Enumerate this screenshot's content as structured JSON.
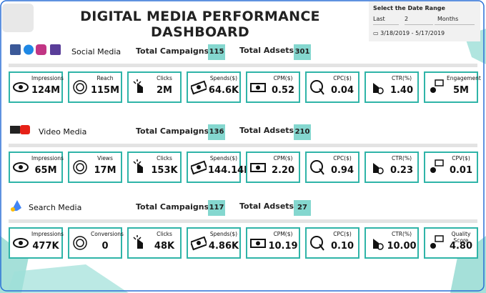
{
  "header": {
    "title": "DIGITAL MEDIA PERFORMANCE DASHBOARD"
  },
  "date_filter": {
    "label": "Select the Date Range",
    "relative": "Last",
    "count": "2",
    "unit": "Months",
    "range": "3/18/2019 - 5/17/2019"
  },
  "sections": [
    {
      "name": "Social Media",
      "campaigns_label": "Total Campaigns",
      "campaigns": 115,
      "adsets_label": "Total Adsets",
      "adsets": 301,
      "cards": [
        {
          "label": "Impressions",
          "value": "124M"
        },
        {
          "label": "Reach",
          "value": "115M"
        },
        {
          "label": "Clicks",
          "value": "2M"
        },
        {
          "label": "Spends($)",
          "value": "64.6K"
        },
        {
          "label": "CPM($)",
          "value": "0.52"
        },
        {
          "label": "CPC($)",
          "value": "0.04"
        },
        {
          "label": "CTR(%)",
          "value": "1.40"
        },
        {
          "label": "Engagement",
          "value": "5M"
        }
      ]
    },
    {
      "name": "Video Media",
      "campaigns_label": "Total Campaigns",
      "campaigns": 136,
      "adsets_label": "Total Adsets",
      "adsets": 210,
      "cards": [
        {
          "label": "Impressions",
          "value": "65M"
        },
        {
          "label": "Views",
          "value": "17M"
        },
        {
          "label": "Clicks",
          "value": "153K"
        },
        {
          "label": "Spends($)",
          "value": "144.14K"
        },
        {
          "label": "CPM($)",
          "value": "2.20"
        },
        {
          "label": "CPC($)",
          "value": "0.94"
        },
        {
          "label": "CTR(%)",
          "value": "0.23"
        },
        {
          "label": "CPV($)",
          "value": "0.01"
        }
      ]
    },
    {
      "name": "Search Media",
      "campaigns_label": "Total Campaigns",
      "campaigns": 117,
      "adsets_label": "Total Adsets",
      "adsets": 27,
      "cards": [
        {
          "label": "Impressions",
          "value": "477K"
        },
        {
          "label": "Conversions",
          "value": "0"
        },
        {
          "label": "Clicks",
          "value": "48K"
        },
        {
          "label": "Spends($)",
          "value": "4.86K"
        },
        {
          "label": "CPM($)",
          "value": "10.19"
        },
        {
          "label": "CPC($)",
          "value": "0.10"
        },
        {
          "label": "CTR(%)",
          "value": "10.00"
        },
        {
          "label": "Quality Score",
          "value": "4.80"
        }
      ]
    }
  ]
}
